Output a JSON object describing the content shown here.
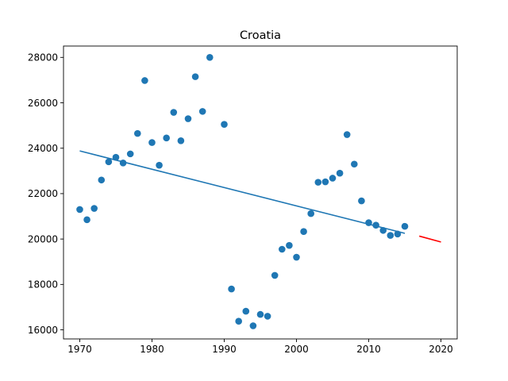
{
  "chart_data": {
    "type": "scatter",
    "title": "Croatia",
    "xlabel": "",
    "ylabel": "",
    "xlim": [
      1967.75,
      2022.25
    ],
    "ylim": [
      15600,
      28500
    ],
    "x_ticks": [
      1970,
      1980,
      1990,
      2000,
      2010,
      2020
    ],
    "y_ticks": [
      16000,
      18000,
      20000,
      22000,
      24000,
      26000,
      28000
    ],
    "grid": false,
    "legend": "none",
    "series": [
      {
        "type": "scatter",
        "color": "#1f77b4",
        "points": [
          [
            1970,
            21300
          ],
          [
            1971,
            20850
          ],
          [
            1972,
            21350
          ],
          [
            1973,
            22600
          ],
          [
            1974,
            23400
          ],
          [
            1975,
            23600
          ],
          [
            1976,
            23350
          ],
          [
            1977,
            23750
          ],
          [
            1978,
            24650
          ],
          [
            1979,
            26980
          ],
          [
            1980,
            24250
          ],
          [
            1981,
            23250
          ],
          [
            1982,
            24450
          ],
          [
            1983,
            25580
          ],
          [
            1984,
            24330
          ],
          [
            1985,
            25300
          ],
          [
            1986,
            27150
          ],
          [
            1987,
            25620
          ],
          [
            1988,
            28000
          ],
          [
            1990,
            25050
          ],
          [
            1991,
            17800
          ],
          [
            1992,
            16380
          ],
          [
            1993,
            16820
          ],
          [
            1994,
            16180
          ],
          [
            1995,
            16680
          ],
          [
            1996,
            16600
          ],
          [
            1997,
            18400
          ],
          [
            1998,
            19550
          ],
          [
            1999,
            19720
          ],
          [
            2000,
            19200
          ],
          [
            2001,
            20330
          ],
          [
            2002,
            21120
          ],
          [
            2003,
            22500
          ],
          [
            2004,
            22520
          ],
          [
            2005,
            22680
          ],
          [
            2006,
            22900
          ],
          [
            2007,
            24600
          ],
          [
            2008,
            23300
          ],
          [
            2009,
            21680
          ],
          [
            2010,
            20720
          ],
          [
            2011,
            20610
          ],
          [
            2012,
            20380
          ],
          [
            2013,
            20160
          ],
          [
            2014,
            20220
          ],
          [
            2015,
            20560
          ]
        ]
      },
      {
        "type": "line",
        "color": "#1f77b4",
        "points": [
          [
            1970,
            23880
          ],
          [
            2015,
            20250
          ]
        ]
      },
      {
        "type": "line",
        "color": "#ff0000",
        "points": [
          [
            2017,
            20130
          ],
          [
            2020,
            19870
          ]
        ]
      }
    ]
  }
}
